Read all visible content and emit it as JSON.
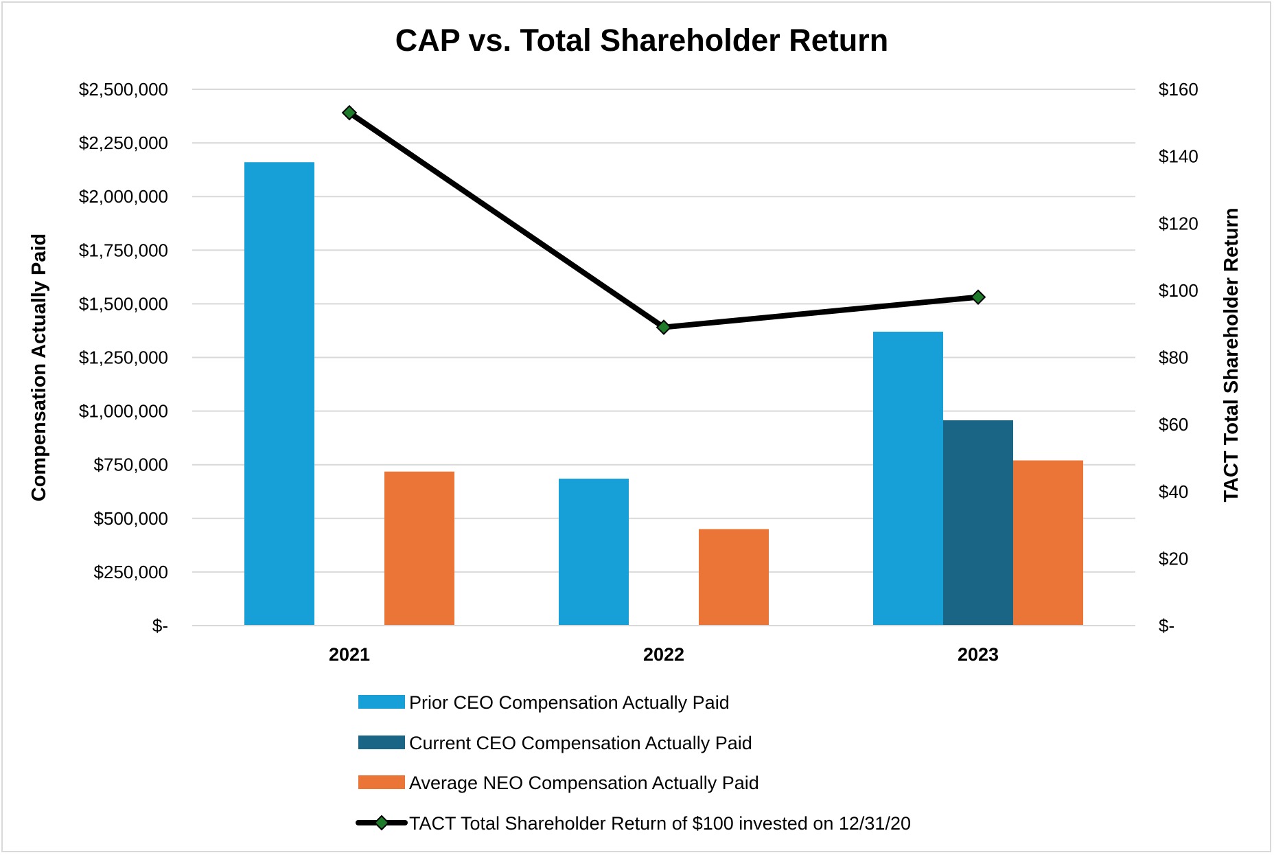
{
  "chart_data": {
    "type": "bar",
    "title": "CAP vs. Total Shareholder Return",
    "categories": [
      "2021",
      "2022",
      "2023"
    ],
    "ylabel": "Compensation Actually Paid",
    "y2label": "TACT Total Shareholder Return",
    "ylim": [
      0,
      2500000
    ],
    "y2lim": [
      0,
      160
    ],
    "yticks": [
      0,
      250000,
      500000,
      750000,
      1000000,
      1250000,
      1500000,
      1750000,
      2000000,
      2250000,
      2500000
    ],
    "ytick_labels": [
      "$-",
      "$250,000",
      "$500,000",
      "$750,000",
      "$1,000,000",
      "$1,250,000",
      "$1,500,000",
      "$1,750,000",
      "$2,000,000",
      "$2,250,000",
      "$2,500,000"
    ],
    "y2ticks": [
      0,
      20,
      40,
      60,
      80,
      100,
      120,
      140,
      160
    ],
    "y2tick_labels": [
      "$-",
      "$20",
      "$40",
      "$60",
      "$80",
      "$100",
      "$120",
      "$140",
      "$160"
    ],
    "grid": true,
    "series": [
      {
        "name": "Prior CEO Compensation Actually Paid",
        "type": "bar",
        "axis": "left",
        "color": "#17a0d8",
        "values": [
          2160000,
          685000,
          1370000
        ]
      },
      {
        "name": "Current CEO Compensation Actually Paid",
        "type": "bar",
        "axis": "left",
        "color": "#1a6485",
        "values": [
          0,
          0,
          957000
        ]
      },
      {
        "name": "Average NEO Compensation Actually Paid",
        "type": "bar",
        "axis": "left",
        "color": "#ea7536",
        "values": [
          718000,
          450000,
          770000
        ]
      },
      {
        "name": "TACT Total Shareholder Return of $100 invested on 12/31/20",
        "type": "line",
        "axis": "right",
        "color": "#000000",
        "marker_color": "#1e7b2a",
        "values": [
          153,
          89,
          98
        ]
      }
    ],
    "legend_position": "bottom"
  }
}
